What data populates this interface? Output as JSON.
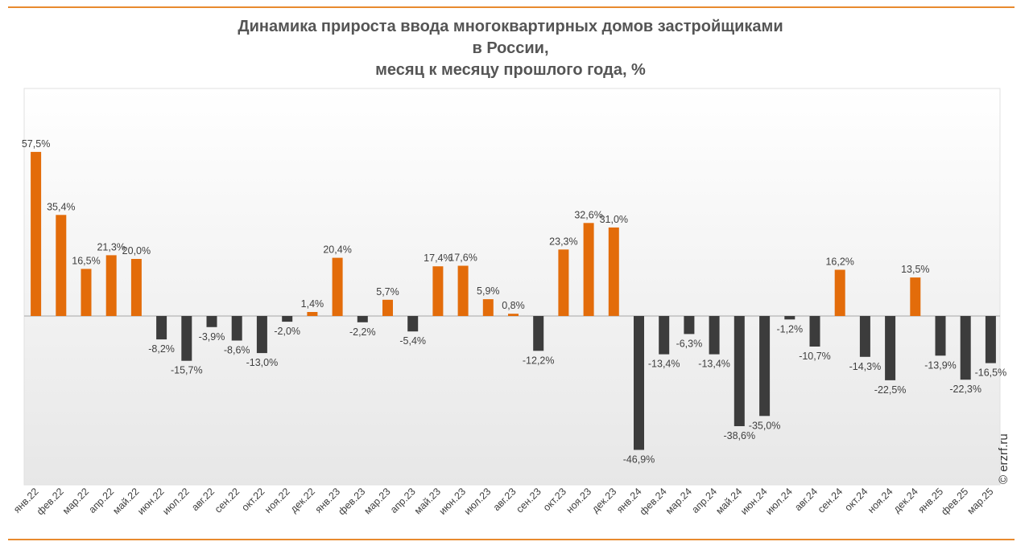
{
  "title_lines": [
    "Динамика прироста ввода многоквартирных домов застройщиками",
    "в России,",
    "месяц к месяцу прошлого года, %"
  ],
  "credit": "© erzrf.ru",
  "colors": {
    "positive": "#e36c0a",
    "negative": "#3c3c3c",
    "accent_rule": "#e88a2e"
  },
  "chart_data": {
    "type": "bar",
    "title": "Динамика прироста ввода многоквартирных домов застройщиками в России, месяц к месяцу прошлого года, %",
    "xlabel": "",
    "ylabel": "",
    "ylim": [
      -60,
      70
    ],
    "grid": false,
    "categories": [
      "янв.22",
      "фев.22",
      "мар.22",
      "апр.22",
      "май.22",
      "июн.22",
      "июл.22",
      "авг.22",
      "сен.22",
      "окт.22",
      "ноя.22",
      "дек.22",
      "янв.23",
      "фев.23",
      "мар.23",
      "апр.23",
      "май.23",
      "июн.23",
      "июл.23",
      "авг.23",
      "сен.23",
      "окт.23",
      "ноя.23",
      "дек.23",
      "янв.24",
      "фев.24",
      "мар.24",
      "апр.24",
      "май.24",
      "июн.24",
      "июл.24",
      "авг.24",
      "сен.24",
      "окт.24",
      "ноя.24",
      "дек.24",
      "янв.25",
      "фев.25",
      "мар.25"
    ],
    "values": [
      57.5,
      35.4,
      16.5,
      21.3,
      20.0,
      -8.2,
      -15.7,
      -3.9,
      -8.6,
      -13.0,
      -2.0,
      1.4,
      20.4,
      -2.2,
      5.7,
      -5.4,
      17.4,
      17.6,
      5.9,
      0.8,
      -12.2,
      23.3,
      32.6,
      31.0,
      -46.9,
      -13.4,
      -6.3,
      -13.4,
      -38.6,
      -35.0,
      -1.2,
      -10.7,
      16.2,
      -14.3,
      -22.5,
      13.5,
      -13.9,
      -22.3,
      -16.5
    ],
    "labels": [
      "57,5%",
      "35,4%",
      "16,5%",
      "21,3%",
      "20,0%",
      "-8,2%",
      "-15,7%",
      "-3,9%",
      "-8,6%",
      "-13,0%",
      "-2,0%",
      "1,4%",
      "20,4%",
      "-2,2%",
      "5,7%",
      "-5,4%",
      "17,4%",
      "17,6%",
      "5,9%",
      "0,8%",
      "-12,2%",
      "23,3%",
      "32,6%",
      "31,0%",
      "-46,9%",
      "-13,4%",
      "-6,3%",
      "-13,4%",
      "-38,6%",
      "-35,0%",
      "-1,2%",
      "-10,7%",
      "16,2%",
      "-14,3%",
      "-22,5%",
      "13,5%",
      "-13,9%",
      "-22,3%",
      "-16,5%"
    ]
  }
}
